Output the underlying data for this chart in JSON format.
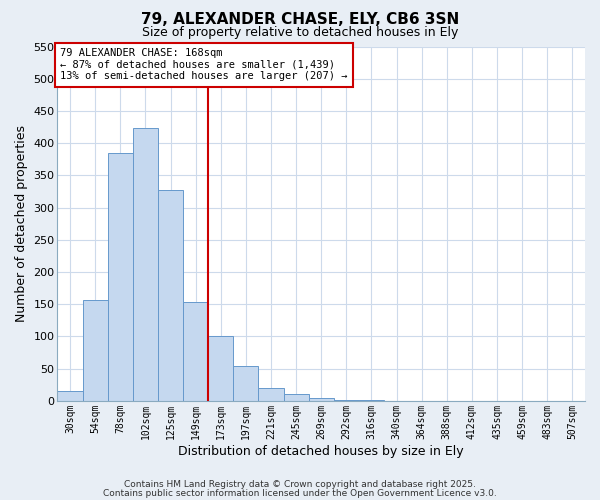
{
  "title": "79, ALEXANDER CHASE, ELY, CB6 3SN",
  "subtitle": "Size of property relative to detached houses in Ely",
  "xlabel": "Distribution of detached houses by size in Ely",
  "ylabel": "Number of detached properties",
  "bar_labels": [
    "30sqm",
    "54sqm",
    "78sqm",
    "102sqm",
    "125sqm",
    "149sqm",
    "173sqm",
    "197sqm",
    "221sqm",
    "245sqm",
    "269sqm",
    "292sqm",
    "316sqm",
    "340sqm",
    "364sqm",
    "388sqm",
    "412sqm",
    "435sqm",
    "459sqm",
    "483sqm",
    "507sqm"
  ],
  "bar_values": [
    15,
    157,
    385,
    423,
    328,
    153,
    101,
    54,
    20,
    10,
    5,
    1,
    1,
    0,
    0,
    0,
    0,
    0,
    0,
    0,
    0
  ],
  "bar_color": "#c5d8ef",
  "bar_edge_color": "#6699cc",
  "grid_color": "#cddaeb",
  "vline_x_bin": 6,
  "vline_color": "#cc0000",
  "annotation_box_text": "79 ALEXANDER CHASE: 168sqm\n← 87% of detached houses are smaller (1,439)\n13% of semi-detached houses are larger (207) →",
  "annotation_box_color": "#cc0000",
  "annotation_box_fill": "#ffffff",
  "ylim": [
    0,
    550
  ],
  "yticks": [
    0,
    50,
    100,
    150,
    200,
    250,
    300,
    350,
    400,
    450,
    500,
    550
  ],
  "footer_line1": "Contains HM Land Registry data © Crown copyright and database right 2025.",
  "footer_line2": "Contains public sector information licensed under the Open Government Licence v3.0.",
  "fig_bg_color": "#e8eef5",
  "plot_bg_color": "#ffffff",
  "spine_color": "#8aaabf"
}
